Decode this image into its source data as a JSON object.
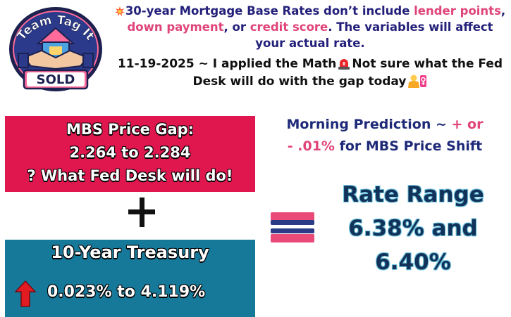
{
  "logo": {
    "text_top": "Team Tag It",
    "text_bottom": "SOLD"
  },
  "header": {
    "line1_part1": "30-year Mortgage Base Rates don’t include ",
    "line1_pink1": "lender points",
    "line1_sep": ",",
    "line1_pink2": "down payment",
    "line1_part2": ", or ",
    "line1_pink3": "credit score",
    "line1_part3": ". The variables will affect your actual rate.",
    "line2_part1": "11-19-2025 ~ I applied the Math",
    "line2_part2": "Not sure what the Fed Desk will do with the gap today",
    "icons": [
      "collision-emoji-icon",
      "siren-emoji-icon",
      "person-shrugging-emoji-icon"
    ]
  },
  "mbs": {
    "line1": "MBS Price Gap:",
    "line2": "2.264 to 2.284",
    "line3": "? What Fed Desk will do!"
  },
  "treasury": {
    "title": "10-Year Treasury",
    "change": "0.023% to 4.119%",
    "direction_icon": "red-up-arrow-icon"
  },
  "prediction": {
    "part1": "Morning Prediction ~ ",
    "part2": "+ or",
    "part3": "- .01%",
    "part4": " for MBS Price Shift"
  },
  "rate": {
    "line1": "Rate Range",
    "line2": "6.38% and",
    "line3": "6.40%"
  },
  "colors": {
    "mbs_box": "#e0164f",
    "treasury_box": "#17799a",
    "accent_pink": "#e0447a",
    "header_navy": "#23207a",
    "rate_text": "#12325a",
    "equals_pink": "#e94a77",
    "equals_navy": "#2a3a86"
  }
}
